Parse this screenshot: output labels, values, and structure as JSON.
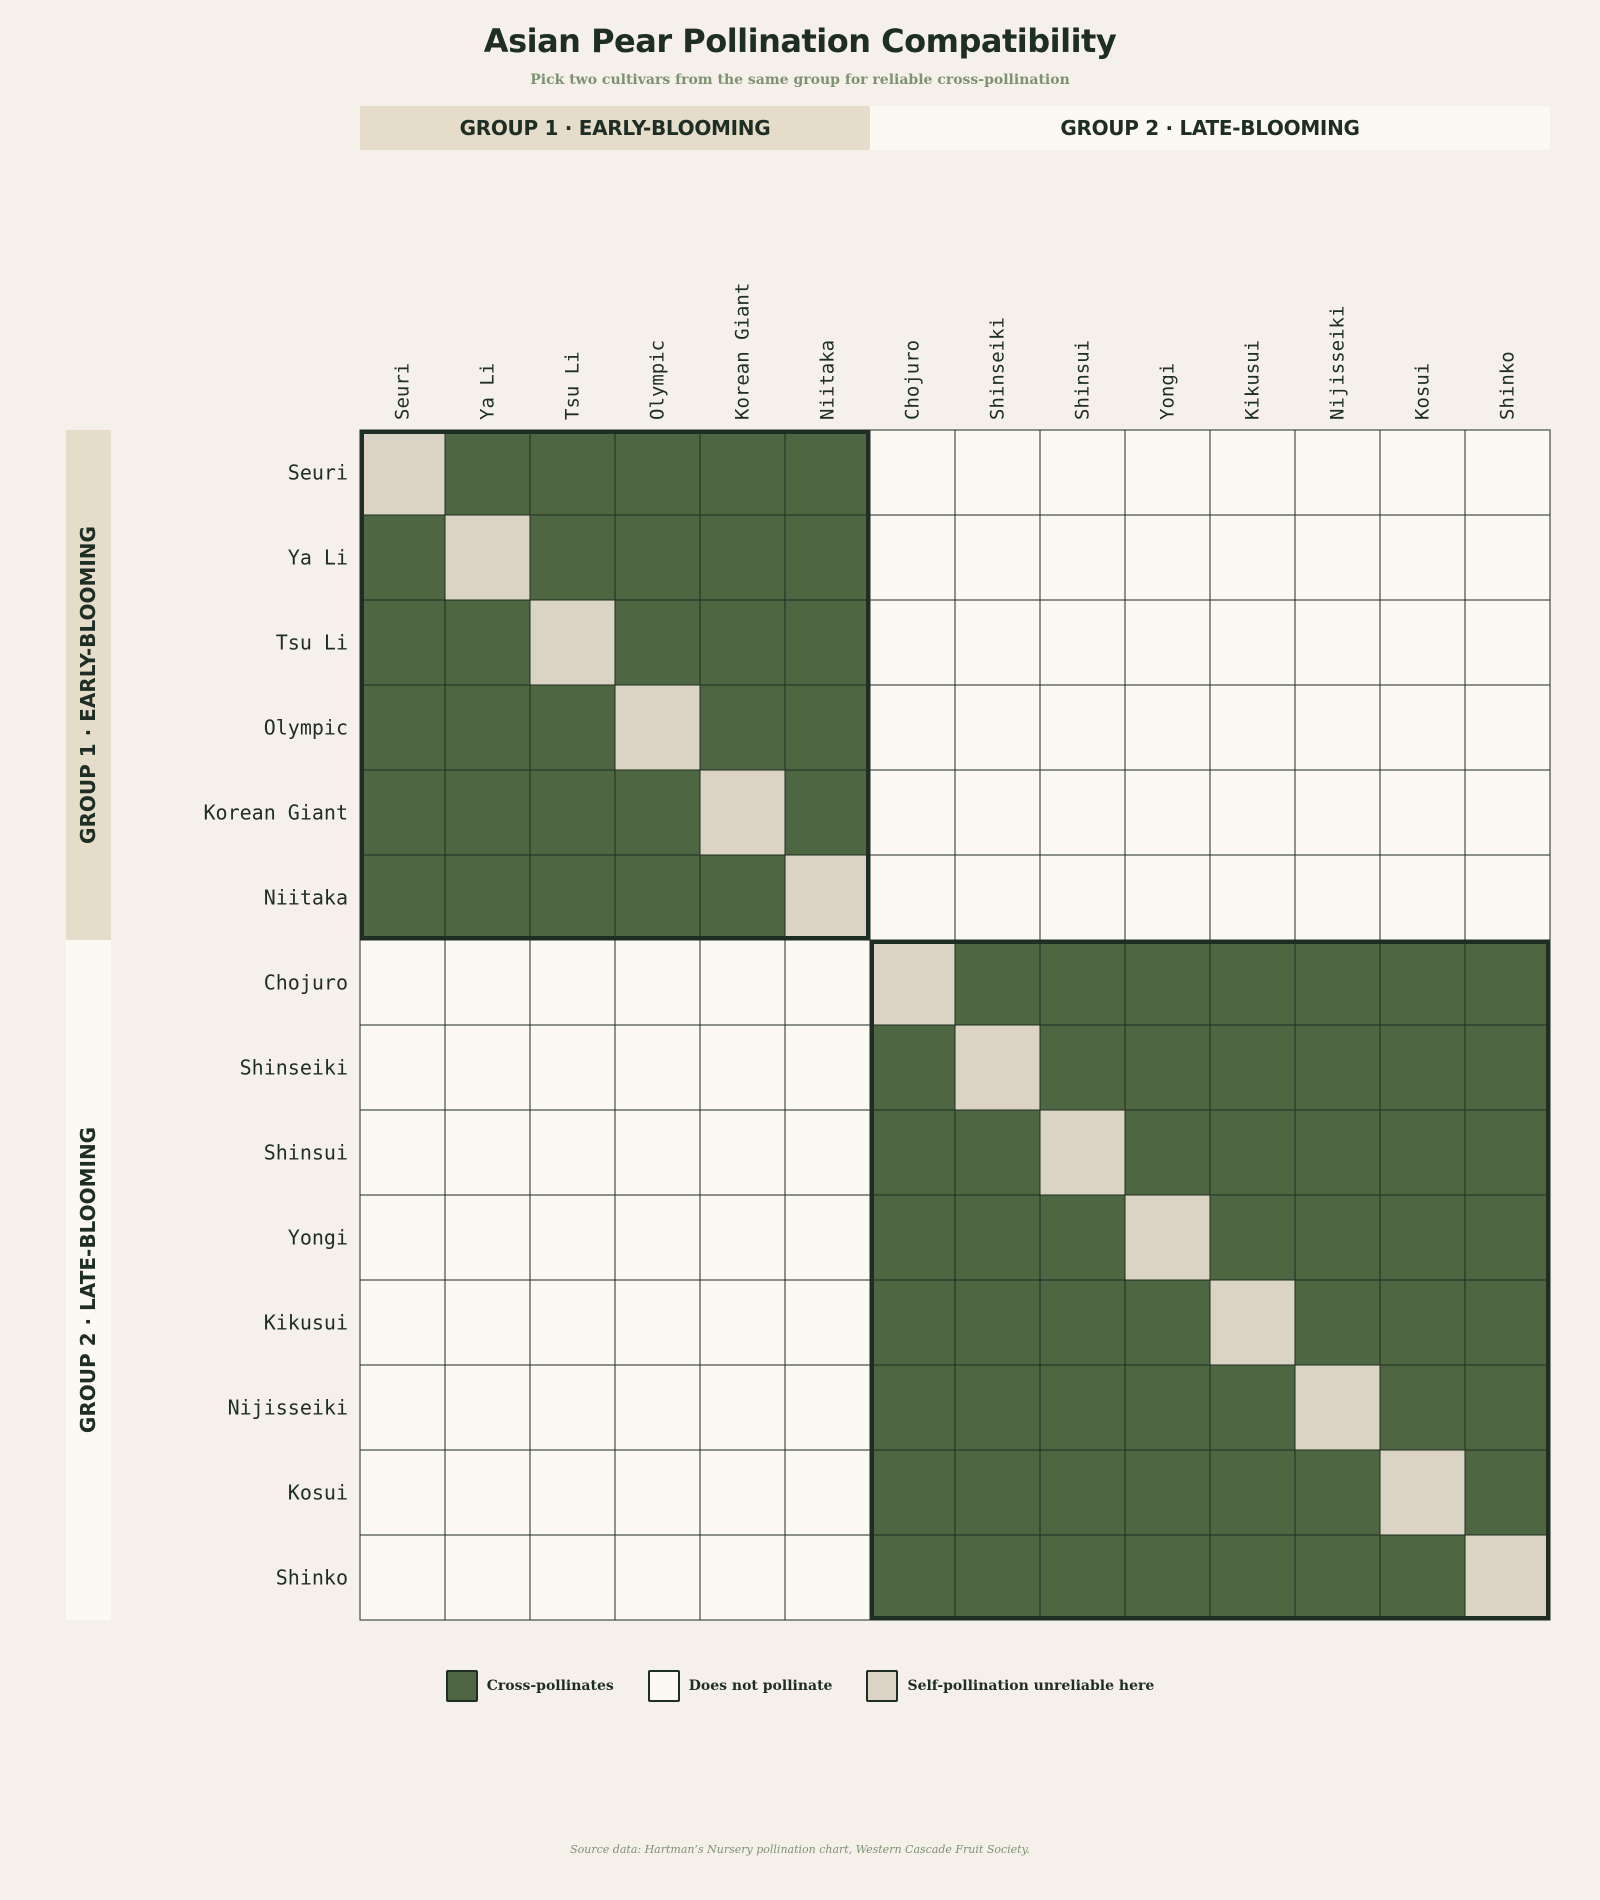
{
  "colors": {
    "cross": "#4e6642",
    "none": "#fcf8f2",
    "self": "#dbd4c4",
    "line": "#1e2e24",
    "group1_band": "#e5dcc9",
    "group2_band": "#fcf8f2"
  },
  "chart_data": {
    "type": "heatmap",
    "title": "Asian Pear Pollination Compatibility",
    "subtitle": "Pick two cultivars from the same group for reliable cross-pollination",
    "groups": [
      {
        "label": "GROUP 1 · EARLY-BLOOMING",
        "members": [
          "Seuri",
          "Ya Li",
          "Tsu Li",
          "Olympic",
          "Korean Giant",
          "Niitaka"
        ]
      },
      {
        "label": "GROUP 2 · LATE-BLOOMING",
        "members": [
          "Chojuro",
          "Shinseiki",
          "Shinsui",
          "Yongi",
          "Kikusui",
          "Nijisseiki",
          "Kosui",
          "Shinko"
        ]
      }
    ],
    "cultivars": [
      "Seuri",
      "Ya Li",
      "Tsu Li",
      "Olympic",
      "Korean Giant",
      "Niitaka",
      "Chojuro",
      "Shinseiki",
      "Shinsui",
      "Yongi",
      "Kikusui",
      "Nijisseiki",
      "Kosui",
      "Shinko"
    ],
    "matrix": [
      [
        2,
        1,
        1,
        1,
        1,
        1,
        0,
        0,
        0,
        0,
        0,
        0,
        0,
        0
      ],
      [
        1,
        2,
        1,
        1,
        1,
        1,
        0,
        0,
        0,
        0,
        0,
        0,
        0,
        0
      ],
      [
        1,
        1,
        2,
        1,
        1,
        1,
        0,
        0,
        0,
        0,
        0,
        0,
        0,
        0
      ],
      [
        1,
        1,
        1,
        2,
        1,
        1,
        0,
        0,
        0,
        0,
        0,
        0,
        0,
        0
      ],
      [
        1,
        1,
        1,
        1,
        2,
        1,
        0,
        0,
        0,
        0,
        0,
        0,
        0,
        0
      ],
      [
        1,
        1,
        1,
        1,
        1,
        2,
        0,
        0,
        0,
        0,
        0,
        0,
        0,
        0
      ],
      [
        0,
        0,
        0,
        0,
        0,
        0,
        2,
        1,
        1,
        1,
        1,
        1,
        1,
        1
      ],
      [
        0,
        0,
        0,
        0,
        0,
        0,
        1,
        2,
        1,
        1,
        1,
        1,
        1,
        1
      ],
      [
        0,
        0,
        0,
        0,
        0,
        0,
        1,
        1,
        2,
        1,
        1,
        1,
        1,
        1
      ],
      [
        0,
        0,
        0,
        0,
        0,
        0,
        1,
        1,
        1,
        2,
        1,
        1,
        1,
        1
      ],
      [
        0,
        0,
        0,
        0,
        0,
        0,
        1,
        1,
        1,
        1,
        2,
        1,
        1,
        1
      ],
      [
        0,
        0,
        0,
        0,
        0,
        0,
        1,
        1,
        1,
        1,
        1,
        2,
        1,
        1
      ],
      [
        0,
        0,
        0,
        0,
        0,
        0,
        1,
        1,
        1,
        1,
        1,
        1,
        2,
        1
      ],
      [
        0,
        0,
        0,
        0,
        0,
        0,
        1,
        1,
        1,
        1,
        1,
        1,
        1,
        2
      ]
    ],
    "legend": [
      {
        "code": 1,
        "label": "Cross-pollinates",
        "color": "#4e6642"
      },
      {
        "code": 0,
        "label": "Does not pollinate",
        "color": "#fcf8f2"
      },
      {
        "code": 2,
        "label": "Self-pollination unreliable here",
        "color": "#dbd4c4"
      }
    ],
    "legend_position": "bottom"
  },
  "source": "Source data: Hartman’s Nursery pollination chart, Western Cascade Fruit Society."
}
